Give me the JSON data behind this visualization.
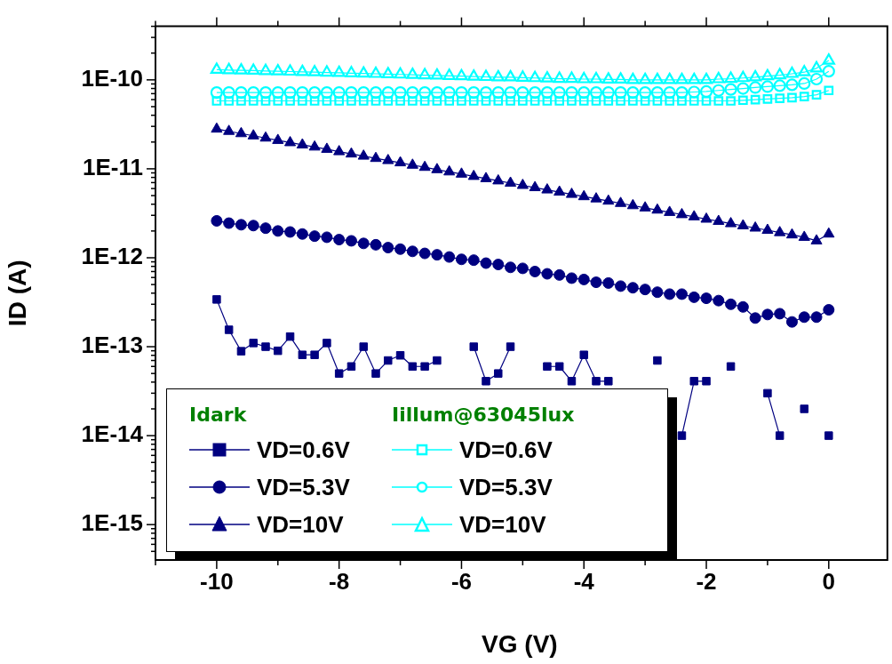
{
  "chart_data": {
    "type": "line",
    "xlabel": "VG (V)",
    "ylabel": "ID (A)",
    "legend_title": "Idark",
    "annotations": [
      "Iillum@63045lux"
    ],
    "legend": "bottom left",
    "grid": false,
    "log": "y",
    "line_style": "solid",
    "x": [
      -10,
      -9.8,
      -9.6,
      -9.4,
      -9.2,
      -9,
      -8.8,
      -8.6,
      -8.4,
      -8.2,
      -8,
      -7.8,
      -7.6,
      -7.4,
      -7.2,
      -7,
      -6.8,
      -6.6,
      -6.4,
      -6.2,
      -6,
      -5.8,
      -5.6,
      -5.4,
      -5.2,
      -5,
      -4.8,
      -4.6,
      -4.4,
      -4.2,
      -4,
      -3.8,
      -3.6,
      -3.4,
      -3.2,
      -3,
      -2.8,
      -2.6,
      -2.4,
      -2.2,
      -2,
      -1.8,
      -1.6,
      -1.4,
      -1.2,
      -1,
      -0.8,
      -0.6,
      -0.4,
      -0.2,
      0
    ],
    "xlim": [
      -11,
      0.9
    ],
    "xticks": [
      {
        "value": -11,
        "label": null
      },
      -10,
      {
        "value": -9,
        "label": null
      },
      -8,
      {
        "value": -7,
        "label": null
      },
      -6,
      {
        "value": -5,
        "label": null
      },
      -4,
      {
        "value": -3,
        "label": null
      },
      -2,
      {
        "value": -1,
        "label": null
      },
      0
    ],
    "ylim": [
      4e-16,
      4e-10
    ],
    "yticks": [
      {
        "value": 5e-16,
        "label": null
      },
      {
        "value": 6e-16,
        "label": null
      },
      {
        "value": 7e-16,
        "label": null
      },
      {
        "value": 8e-16,
        "label": null
      },
      {
        "value": 9e-16,
        "label": null
      },
      {
        "value": 1e-15,
        "label": "1E-15"
      },
      {
        "value": 2e-15,
        "label": null
      },
      {
        "value": 3e-15,
        "label": null
      },
      {
        "value": 4e-15,
        "label": null
      },
      {
        "value": 5e-15,
        "label": null
      },
      {
        "value": 6e-15,
        "label": null
      },
      {
        "value": 7e-15,
        "label": null
      },
      {
        "value": 8e-15,
        "label": null
      },
      {
        "value": 9e-15,
        "label": null
      },
      {
        "value": 1e-14,
        "label": "1E-14"
      },
      {
        "value": 2e-14,
        "label": null
      },
      {
        "value": 3e-14,
        "label": null
      },
      {
        "value": 4e-14,
        "label": null
      },
      {
        "value": 5e-14,
        "label": null
      },
      {
        "value": 6e-14,
        "label": null
      },
      {
        "value": 7e-14,
        "label": null
      },
      {
        "value": 8e-14,
        "label": null
      },
      {
        "value": 9e-14,
        "label": null
      },
      {
        "value": 1e-13,
        "label": "1E-13"
      },
      {
        "value": 2e-13,
        "label": null
      },
      {
        "value": 3e-13,
        "label": null
      },
      {
        "value": 4e-13,
        "label": null
      },
      {
        "value": 5e-13,
        "label": null
      },
      {
        "value": 6e-13,
        "label": null
      },
      {
        "value": 7e-13,
        "label": null
      },
      {
        "value": 8e-13,
        "label": null
      },
      {
        "value": 9e-13,
        "label": null
      },
      {
        "value": 1e-12,
        "label": "1E-12"
      },
      {
        "value": 2e-12,
        "label": null
      },
      {
        "value": 3e-12,
        "label": null
      },
      {
        "value": 4e-12,
        "label": null
      },
      {
        "value": 5e-12,
        "label": null
      },
      {
        "value": 6e-12,
        "label": null
      },
      {
        "value": 7e-12,
        "label": null
      },
      {
        "value": 8e-12,
        "label": null
      },
      {
        "value": 9e-12,
        "label": null
      },
      {
        "value": 1e-11,
        "label": "1E-11"
      },
      {
        "value": 2e-11,
        "label": null
      },
      {
        "value": 3e-11,
        "label": null
      },
      {
        "value": 4e-11,
        "label": null
      },
      {
        "value": 5e-11,
        "label": null
      },
      {
        "value": 6e-11,
        "label": null
      },
      {
        "value": 7e-11,
        "label": null
      },
      {
        "value": 8e-11,
        "label": null
      },
      {
        "value": 9e-11,
        "label": null
      },
      {
        "value": 1e-10,
        "label": "1E-10"
      },
      {
        "value": 2e-10,
        "label": null
      },
      {
        "value": 3e-10,
        "label": null
      },
      {
        "value": 4e-10,
        "label": null
      }
    ],
    "series": [
      {
        "name": "VD=0.6V",
        "color": "#000080",
        "marker": "square",
        "values": [
          3.4e-13,
          1.55e-13,
          8.9e-14,
          1.1e-13,
          1e-13,
          9e-14,
          1.3e-13,
          8.1e-14,
          8.1e-14,
          1.1e-13,
          5e-14,
          6e-14,
          1e-13,
          5e-14,
          7e-14,
          8e-14,
          6e-14,
          6e-14,
          7e-14,
          null,
          null,
          1e-13,
          4.1e-14,
          5e-14,
          1e-13,
          null,
          null,
          6e-14,
          6e-14,
          4.1e-14,
          8.1e-14,
          4.1e-14,
          4.1e-14,
          null,
          null,
          null,
          7e-14,
          null,
          1e-14,
          4.1e-14,
          4.1e-14,
          null,
          6e-14,
          null,
          null,
          3e-14,
          1e-14,
          null,
          2e-14,
          null,
          1e-14
        ]
      },
      {
        "name": "VD=5.3V",
        "color": "#000080",
        "marker": "circle",
        "values": [
          2.6e-12,
          2.45e-12,
          2.35e-12,
          2.3e-12,
          2.15e-12,
          2e-12,
          1.95e-12,
          1.85e-12,
          1.75e-12,
          1.7e-12,
          1.6e-12,
          1.55e-12,
          1.45e-12,
          1.4e-12,
          1.3e-12,
          1.25e-12,
          1.18e-12,
          1.12e-12,
          1.08e-12,
          1.02e-12,
          9.6e-13,
          9.4e-13,
          8.7e-13,
          8.4e-13,
          7.8e-13,
          7.6e-13,
          7e-13,
          6.6e-13,
          6.4e-13,
          5.9e-13,
          5.7e-13,
          5.3e-13,
          5.2e-13,
          4.8e-13,
          4.6e-13,
          4.4e-13,
          4.1e-13,
          3.9e-13,
          3.9e-13,
          3.6e-13,
          3.5e-13,
          3.3e-13,
          3e-13,
          2.8e-13,
          2.1e-13,
          2.3e-13,
          2.35e-13,
          1.9e-13,
          2.15e-13,
          2.15e-13,
          2.6e-13
        ]
      },
      {
        "name": "VD=10V",
        "color": "#000080",
        "marker": "triangle",
        "values": [
          2.8e-11,
          2.64e-11,
          2.49e-11,
          2.35e-11,
          2.22e-11,
          2.09e-11,
          1.97e-11,
          1.86e-11,
          1.76e-11,
          1.66e-11,
          1.56e-11,
          1.47e-11,
          1.39e-11,
          1.31e-11,
          1.24e-11,
          1.17e-11,
          1.1e-11,
          1.04e-11,
          9.8e-12,
          9.25e-12,
          8.73e-12,
          8.23e-12,
          7.77e-12,
          7.33e-12,
          6.91e-12,
          6.52e-12,
          6.15e-12,
          5.8e-12,
          5.48e-12,
          5.17e-12,
          4.87e-12,
          4.6e-12,
          4.34e-12,
          4.09e-12,
          3.86e-12,
          3.64e-12,
          3.44e-12,
          3.24e-12,
          3.06e-12,
          2.89e-12,
          2.72e-12,
          2.57e-12,
          2.42e-12,
          2.29e-12,
          2.16e-12,
          2.04e-12,
          1.92e-12,
          1.81e-12,
          1.7e-12,
          1.55e-12,
          1.85e-12
        ]
      },
      {
        "name": "VD=0.6V",
        "color": "#00ffff",
        "marker": "square",
        "values": [
          5.8e-11,
          5.8e-11,
          5.8e-11,
          5.8e-11,
          5.8e-11,
          5.8e-11,
          5.8e-11,
          5.8e-11,
          5.8e-11,
          5.8e-11,
          5.8e-11,
          5.8e-11,
          5.8e-11,
          5.8e-11,
          5.8e-11,
          5.8e-11,
          5.8e-11,
          5.8e-11,
          5.8e-11,
          5.8e-11,
          5.8e-11,
          5.8e-11,
          5.8e-11,
          5.8e-11,
          5.8e-11,
          5.8e-11,
          5.8e-11,
          5.8e-11,
          5.8e-11,
          5.8e-11,
          5.8e-11,
          5.8e-11,
          5.8e-11,
          5.8e-11,
          5.8e-11,
          5.8e-11,
          5.8e-11,
          5.8e-11,
          5.8e-11,
          5.8e-11,
          5.8e-11,
          5.8e-11,
          5.8e-11,
          5.9e-11,
          6e-11,
          6.1e-11,
          6.2e-11,
          6.3e-11,
          6.5e-11,
          6.8e-11,
          7.6e-11
        ]
      },
      {
        "name": "VD=5.3V",
        "color": "#00ffff",
        "marker": "circle",
        "values": [
          7.2e-11,
          7.2e-11,
          7.2e-11,
          7.2e-11,
          7.2e-11,
          7.2e-11,
          7.2e-11,
          7.2e-11,
          7.2e-11,
          7.2e-11,
          7.2e-11,
          7.2e-11,
          7.2e-11,
          7.2e-11,
          7.2e-11,
          7.2e-11,
          7.2e-11,
          7.2e-11,
          7.2e-11,
          7.2e-11,
          7.2e-11,
          7.2e-11,
          7.2e-11,
          7.2e-11,
          7.2e-11,
          7.2e-11,
          7.2e-11,
          7.2e-11,
          7.2e-11,
          7.2e-11,
          7.2e-11,
          7.2e-11,
          7.2e-11,
          7.2e-11,
          7.2e-11,
          7.2e-11,
          7.2e-11,
          7.2e-11,
          7.2e-11,
          7.3e-11,
          7.4e-11,
          7.6e-11,
          7.8e-11,
          8e-11,
          8.2e-11,
          8.4e-11,
          8.6e-11,
          8.8e-11,
          9.1e-11,
          1.02e-10,
          1.25e-10
        ]
      },
      {
        "name": "VD=10V",
        "color": "#00ffff",
        "marker": "triangle",
        "values": [
          1.3e-10,
          1.29e-10,
          1.28e-10,
          1.27e-10,
          1.26e-10,
          1.25e-10,
          1.24e-10,
          1.23e-10,
          1.22e-10,
          1.21e-10,
          1.2e-10,
          1.19e-10,
          1.18e-10,
          1.17e-10,
          1.16e-10,
          1.15e-10,
          1.14e-10,
          1.13e-10,
          1.12e-10,
          1.11e-10,
          1.1e-10,
          1.09e-10,
          1.08e-10,
          1.07e-10,
          1.07e-10,
          1.06e-10,
          1.05e-10,
          1.04e-10,
          1.03e-10,
          1.03e-10,
          1.02e-10,
          1.02e-10,
          1.01e-10,
          1.01e-10,
          1e-10,
          1e-10,
          1e-10,
          1e-10,
          1e-10,
          1e-10,
          1e-10,
          1.02e-10,
          1.03e-10,
          1.05e-10,
          1.07e-10,
          1.1e-10,
          1.13e-10,
          1.17e-10,
          1.22e-10,
          1.35e-10,
          1.65e-10
        ]
      }
    ]
  }
}
